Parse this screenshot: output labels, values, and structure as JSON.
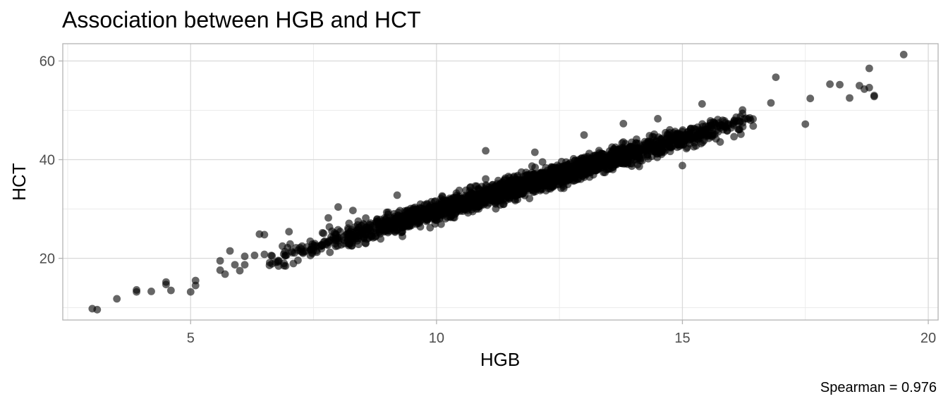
{
  "chart_data": {
    "type": "scatter",
    "title": "Association between HGB and HCT",
    "xlabel": "HGB",
    "ylabel": "HCT",
    "caption": "Spearman = 0.976",
    "xlim": [
      2.4,
      20.2
    ],
    "ylim": [
      7.5,
      63.5
    ],
    "x_ticks": [
      5,
      10,
      15,
      20
    ],
    "y_ticks": [
      20,
      40,
      60
    ],
    "x_tick_labels": [
      "5",
      "10",
      "15",
      "20"
    ],
    "y_tick_labels": [
      "20",
      "40",
      "60"
    ],
    "grid": true,
    "point_color": "#000000",
    "point_alpha": 0.6,
    "outliers": [
      [
        3.0,
        9.8
      ],
      [
        3.1,
        9.6
      ],
      [
        3.5,
        11.8
      ],
      [
        3.9,
        13.2
      ],
      [
        3.9,
        13.6
      ],
      [
        4.2,
        13.3
      ],
      [
        4.5,
        15.2
      ],
      [
        4.5,
        14.7
      ],
      [
        4.6,
        13.5
      ],
      [
        5.0,
        13.2
      ],
      [
        5.1,
        15.5
      ],
      [
        5.1,
        14.5
      ],
      [
        5.6,
        19.5
      ],
      [
        5.6,
        17.6
      ],
      [
        5.7,
        16.8
      ],
      [
        5.8,
        21.5
      ],
      [
        5.9,
        18.7
      ],
      [
        6.0,
        17.5
      ],
      [
        6.1,
        18.7
      ],
      [
        6.1,
        20.4
      ],
      [
        6.3,
        20.6
      ],
      [
        6.4,
        24.9
      ],
      [
        6.5,
        24.8
      ],
      [
        6.5,
        20.8
      ],
      [
        6.9,
        19.0
      ],
      [
        6.9,
        18.5
      ],
      [
        7.0,
        25.4
      ],
      [
        7.8,
        28.2
      ],
      [
        8.0,
        30.4
      ],
      [
        8.3,
        29.7
      ],
      [
        9.2,
        32.8
      ],
      [
        11.0,
        41.8
      ],
      [
        12.0,
        41.5
      ],
      [
        13.0,
        45.0
      ],
      [
        13.8,
        47.3
      ],
      [
        14.5,
        48.3
      ],
      [
        15.0,
        38.8
      ],
      [
        15.4,
        51.3
      ],
      [
        16.8,
        51.5
      ],
      [
        16.9,
        56.7
      ],
      [
        17.5,
        47.2
      ],
      [
        17.6,
        52.4
      ],
      [
        18.0,
        55.3
      ],
      [
        18.2,
        55.2
      ],
      [
        18.4,
        52.5
      ],
      [
        18.6,
        55.0
      ],
      [
        18.7,
        54.3
      ],
      [
        18.8,
        58.5
      ],
      [
        18.8,
        54.6
      ],
      [
        18.9,
        53.0
      ],
      [
        18.9,
        52.8
      ],
      [
        19.5,
        61.3
      ]
    ],
    "main_cloud": {
      "n_points": 2400,
      "x_range": [
        7.3,
        17.5
      ],
      "x_mode": 11.5,
      "fit_intercept": 0.5,
      "fit_slope": 2.92,
      "residual_sd": 1.1
    }
  }
}
